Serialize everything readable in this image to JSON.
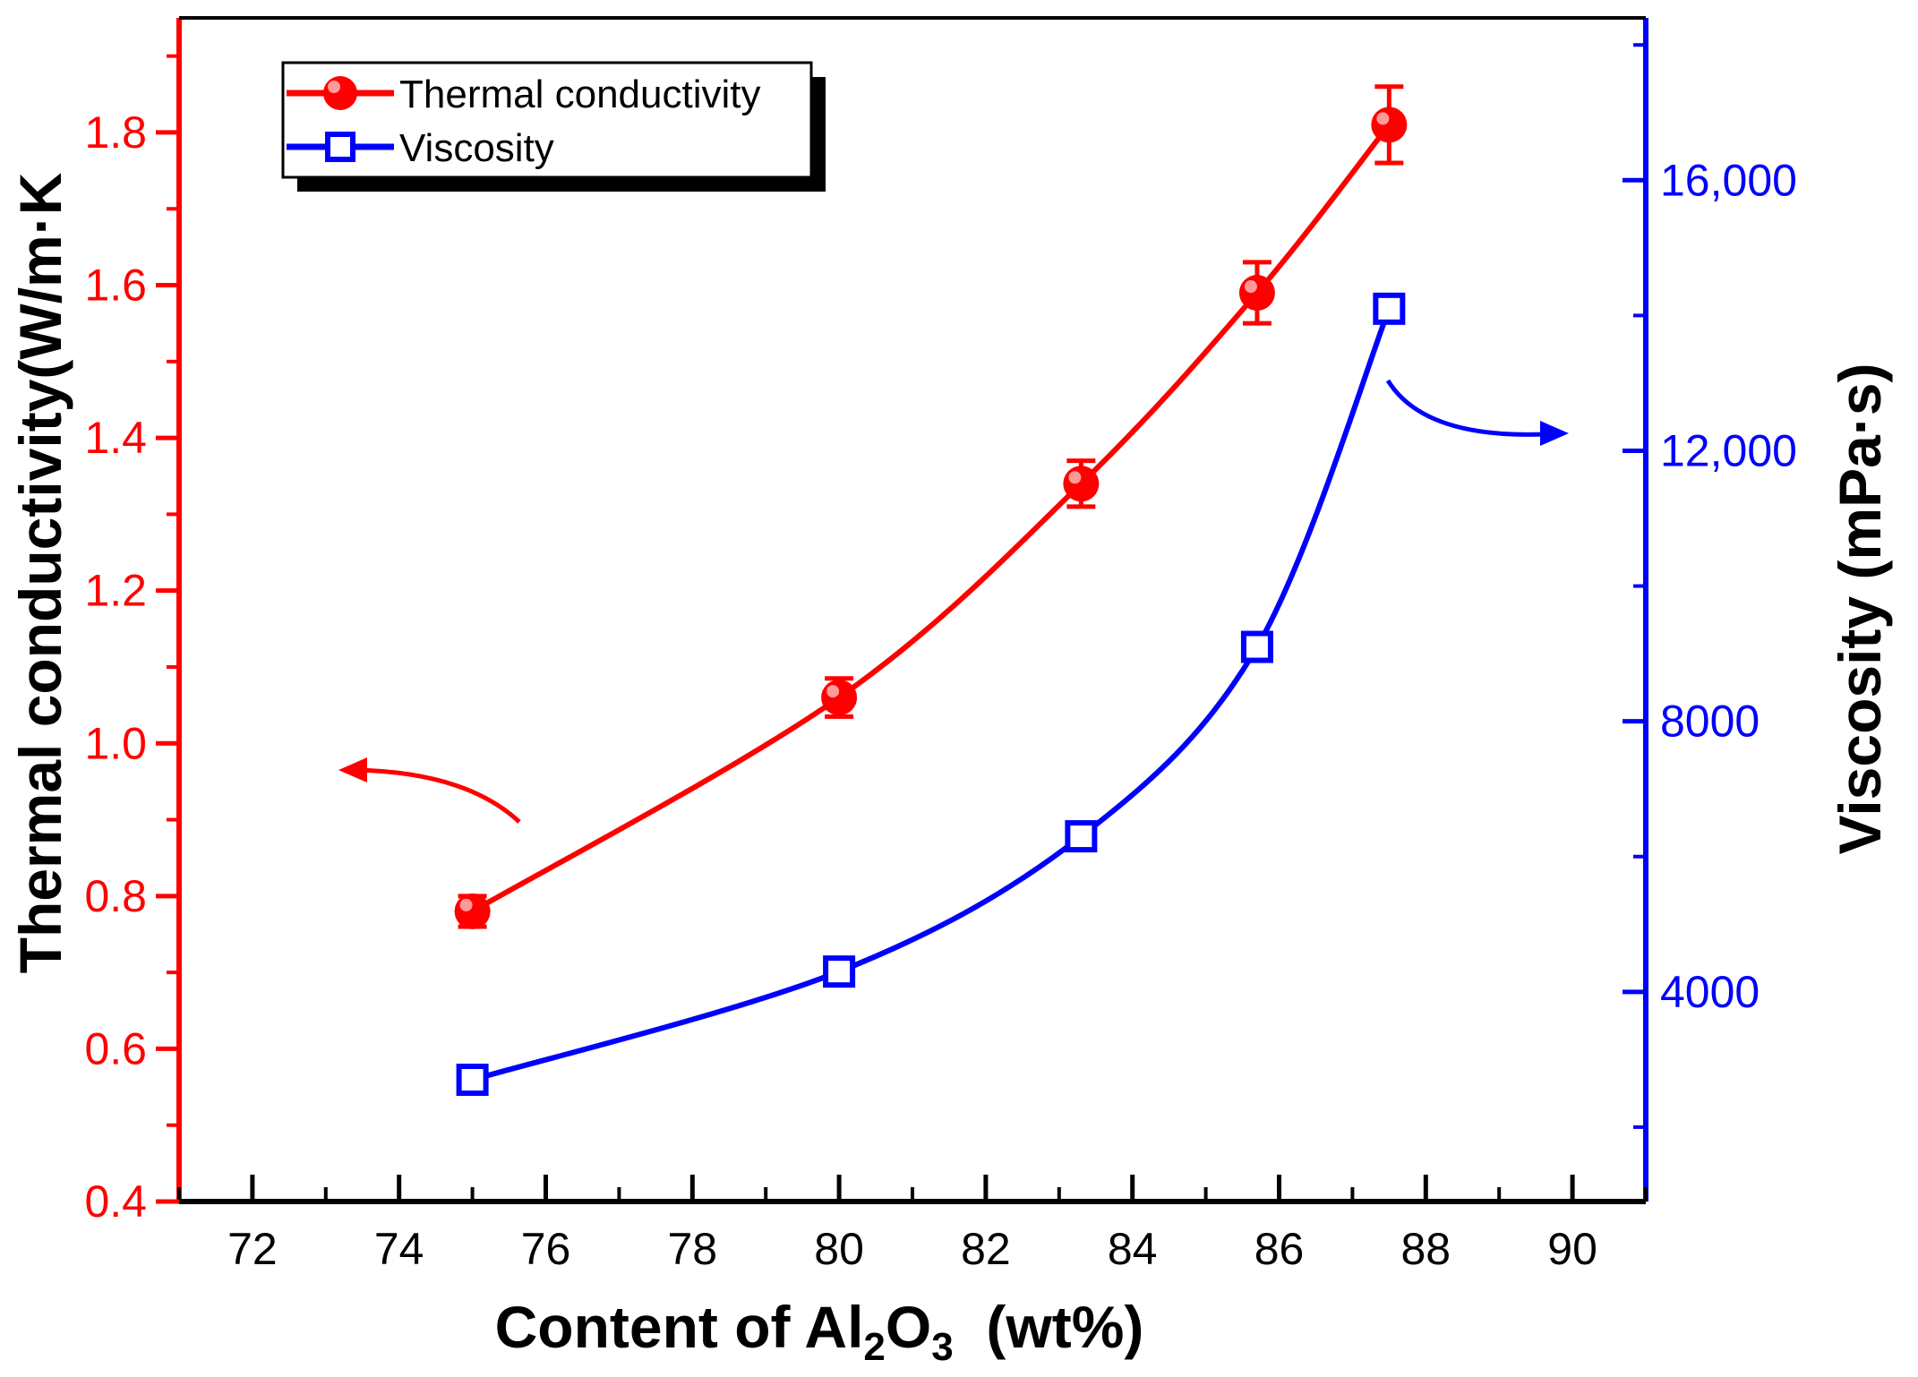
{
  "chart_data": {
    "type": "line",
    "title": "",
    "xlabel": {
      "prefix": "Content of Al",
      "sub1": "2",
      "mid": "O",
      "sub2": "3",
      "suffix": "  (wt%)"
    },
    "ylabel_left": "Thermal conductivity(W/m·K",
    "ylabel_right": "Viscosity (mPa·s)",
    "xlim": [
      71,
      91
    ],
    "ylim_left": [
      0.4,
      1.95
    ],
    "ylim_right": [
      900,
      18400
    ],
    "x_ticks": [
      72,
      74,
      76,
      78,
      80,
      82,
      84,
      86,
      88,
      90
    ],
    "y_left_ticks": [
      0.4,
      0.6,
      0.8,
      1.0,
      1.2,
      1.4,
      1.6,
      1.8
    ],
    "y_left_tick_labels": [
      "0.4",
      "0.6",
      "0.8",
      "1.0",
      "1.2",
      "1.4",
      "1.6",
      "1.8"
    ],
    "y_right_ticks": [
      4000,
      8000,
      12000,
      16000
    ],
    "y_right_tick_labels": [
      "4000",
      "8000",
      "12,000",
      "16,000"
    ],
    "y_right_minor_ticks": [
      2000,
      6000,
      10000,
      14000,
      18000
    ],
    "colors": {
      "thermal": "#ff0000",
      "viscosity": "#0000ff",
      "axis": "#000000"
    },
    "series": [
      {
        "name": "Thermal conductivity",
        "axis": "left",
        "marker": "filled-circle",
        "x": [
          75,
          80,
          83.3,
          85.7,
          87.5
        ],
        "y": [
          0.78,
          1.06,
          1.34,
          1.59,
          1.81
        ],
        "err": [
          0.02,
          0.025,
          0.03,
          0.04,
          0.05
        ]
      },
      {
        "name": "Viscosity",
        "axis": "right",
        "marker": "open-square",
        "x": [
          75,
          80,
          83.3,
          85.7,
          87.5
        ],
        "y": [
          2700,
          4300,
          6300,
          9100,
          14100
        ],
        "err": [
          150,
          200,
          150,
          0,
          0
        ]
      }
    ],
    "legend": {
      "position": "top-left",
      "entries": [
        "Thermal conductivity",
        "Viscosity"
      ]
    }
  }
}
